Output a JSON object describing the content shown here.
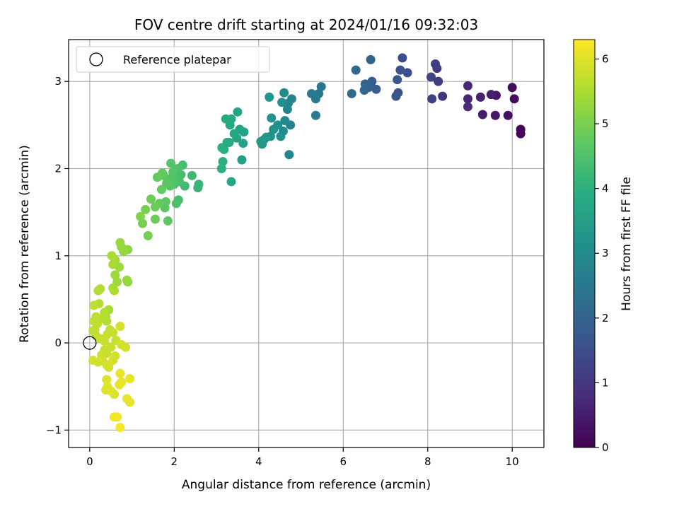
{
  "chart_data": {
    "type": "scatter",
    "title": "FOV centre drift starting at 2024/01/16 09:32:03",
    "xlabel": "Angular distance from reference (arcmin)",
    "ylabel": "Rotation from reference (arcmin)",
    "colorbar_label": "Hours from first FF file",
    "colormap": "viridis",
    "xlim": [
      -0.5,
      10.75
    ],
    "ylim": [
      -1.2,
      3.48
    ],
    "clim": [
      0,
      6.3
    ],
    "xticks": [
      0,
      2,
      4,
      6,
      8,
      10
    ],
    "yticks": [
      -1,
      0,
      1,
      2,
      3
    ],
    "cticks": [
      0,
      1,
      2,
      3,
      4,
      5,
      6
    ],
    "xtick_labels": [
      "0",
      "2",
      "4",
      "6",
      "8",
      "10"
    ],
    "ytick_labels": [
      "−1",
      "0",
      "1",
      "2",
      "3"
    ],
    "ctick_labels": [
      "0",
      "1",
      "2",
      "3",
      "4",
      "5",
      "6"
    ],
    "grid": true,
    "legend": {
      "placement": "top-left",
      "entries": [
        "Reference platepar"
      ]
    },
    "reference_point": {
      "name": "Reference platepar",
      "x": 0,
      "y": 0
    },
    "points": [
      {
        "x": 10.2,
        "y": 2.45,
        "c": 0.1
      },
      {
        "x": 10.2,
        "y": 2.4,
        "c": 0.1
      },
      {
        "x": 10.05,
        "y": 2.8,
        "c": 0.2
      },
      {
        "x": 10.0,
        "y": 2.93,
        "c": 0.2
      },
      {
        "x": 9.9,
        "y": 2.61,
        "c": 0.3
      },
      {
        "x": 9.62,
        "y": 2.84,
        "c": 0.4
      },
      {
        "x": 9.6,
        "y": 2.61,
        "c": 0.4
      },
      {
        "x": 9.5,
        "y": 2.85,
        "c": 0.5
      },
      {
        "x": 9.3,
        "y": 2.62,
        "c": 0.5
      },
      {
        "x": 9.25,
        "y": 2.82,
        "c": 0.6
      },
      {
        "x": 8.95,
        "y": 2.95,
        "c": 0.7
      },
      {
        "x": 8.95,
        "y": 2.8,
        "c": 0.7
      },
      {
        "x": 8.95,
        "y": 2.71,
        "c": 0.8
      },
      {
        "x": 8.35,
        "y": 2.83,
        "c": 1.0
      },
      {
        "x": 8.25,
        "y": 3.0,
        "c": 1.1
      },
      {
        "x": 8.22,
        "y": 3.15,
        "c": 1.1
      },
      {
        "x": 8.18,
        "y": 3.2,
        "c": 1.2
      },
      {
        "x": 8.1,
        "y": 2.8,
        "c": 1.2
      },
      {
        "x": 8.08,
        "y": 3.05,
        "c": 1.3
      },
      {
        "x": 7.52,
        "y": 3.1,
        "c": 1.5
      },
      {
        "x": 7.4,
        "y": 3.27,
        "c": 1.5
      },
      {
        "x": 7.35,
        "y": 3.13,
        "c": 1.6
      },
      {
        "x": 7.3,
        "y": 2.87,
        "c": 1.6
      },
      {
        "x": 7.28,
        "y": 3.02,
        "c": 1.7
      },
      {
        "x": 7.25,
        "y": 2.83,
        "c": 1.7
      },
      {
        "x": 6.78,
        "y": 2.91,
        "c": 1.9
      },
      {
        "x": 6.68,
        "y": 3.0,
        "c": 1.9
      },
      {
        "x": 6.65,
        "y": 3.25,
        "c": 2.0
      },
      {
        "x": 6.6,
        "y": 2.93,
        "c": 2.0
      },
      {
        "x": 6.52,
        "y": 2.97,
        "c": 2.1
      },
      {
        "x": 6.5,
        "y": 2.9,
        "c": 2.1
      },
      {
        "x": 6.3,
        "y": 3.13,
        "c": 2.2
      },
      {
        "x": 6.2,
        "y": 2.86,
        "c": 2.2
      },
      {
        "x": 5.48,
        "y": 2.94,
        "c": 2.5
      },
      {
        "x": 5.42,
        "y": 2.86,
        "c": 2.5
      },
      {
        "x": 5.35,
        "y": 2.8,
        "c": 2.6
      },
      {
        "x": 5.35,
        "y": 2.61,
        "c": 2.6
      },
      {
        "x": 5.25,
        "y": 2.86,
        "c": 2.6
      },
      {
        "x": 4.78,
        "y": 2.8,
        "c": 2.8
      },
      {
        "x": 4.75,
        "y": 2.5,
        "c": 2.8
      },
      {
        "x": 4.72,
        "y": 2.16,
        "c": 2.9
      },
      {
        "x": 4.7,
        "y": 2.75,
        "c": 2.9
      },
      {
        "x": 4.68,
        "y": 2.68,
        "c": 2.9
      },
      {
        "x": 4.62,
        "y": 2.55,
        "c": 3.0
      },
      {
        "x": 4.6,
        "y": 2.87,
        "c": 3.0
      },
      {
        "x": 4.58,
        "y": 2.43,
        "c": 3.0
      },
      {
        "x": 4.55,
        "y": 2.76,
        "c": 3.1
      },
      {
        "x": 4.52,
        "y": 2.37,
        "c": 3.1
      },
      {
        "x": 4.45,
        "y": 2.5,
        "c": 3.1
      },
      {
        "x": 4.35,
        "y": 2.45,
        "c": 3.2
      },
      {
        "x": 4.3,
        "y": 2.58,
        "c": 3.2
      },
      {
        "x": 4.28,
        "y": 2.37,
        "c": 3.2
      },
      {
        "x": 4.25,
        "y": 2.82,
        "c": 3.3
      },
      {
        "x": 4.18,
        "y": 2.36,
        "c": 3.3
      },
      {
        "x": 4.12,
        "y": 2.33,
        "c": 3.3
      },
      {
        "x": 4.08,
        "y": 2.28,
        "c": 3.3
      },
      {
        "x": 4.05,
        "y": 2.31,
        "c": 3.4
      },
      {
        "x": 3.65,
        "y": 2.42,
        "c": 3.6
      },
      {
        "x": 3.63,
        "y": 2.29,
        "c": 3.6
      },
      {
        "x": 3.6,
        "y": 2.1,
        "c": 3.6
      },
      {
        "x": 3.55,
        "y": 2.45,
        "c": 3.7
      },
      {
        "x": 3.5,
        "y": 2.65,
        "c": 3.7
      },
      {
        "x": 3.48,
        "y": 2.35,
        "c": 3.7
      },
      {
        "x": 3.42,
        "y": 2.4,
        "c": 3.8
      },
      {
        "x": 3.35,
        "y": 2.57,
        "c": 3.8
      },
      {
        "x": 3.35,
        "y": 1.85,
        "c": 3.8
      },
      {
        "x": 3.32,
        "y": 2.5,
        "c": 3.8
      },
      {
        "x": 3.3,
        "y": 2.3,
        "c": 3.9
      },
      {
        "x": 3.25,
        "y": 2.3,
        "c": 3.9
      },
      {
        "x": 3.22,
        "y": 2.57,
        "c": 3.9
      },
      {
        "x": 3.18,
        "y": 2.22,
        "c": 3.9
      },
      {
        "x": 3.15,
        "y": 2.08,
        "c": 4.0
      },
      {
        "x": 3.13,
        "y": 2.24,
        "c": 4.0
      },
      {
        "x": 3.12,
        "y": 2.0,
        "c": 4.0
      },
      {
        "x": 2.58,
        "y": 1.82,
        "c": 4.2
      },
      {
        "x": 2.56,
        "y": 1.78,
        "c": 4.2
      },
      {
        "x": 2.42,
        "y": 1.92,
        "c": 4.3
      },
      {
        "x": 2.25,
        "y": 1.8,
        "c": 4.3
      },
      {
        "x": 2.2,
        "y": 2.04,
        "c": 4.4
      },
      {
        "x": 2.16,
        "y": 1.93,
        "c": 4.4
      },
      {
        "x": 2.12,
        "y": 1.85,
        "c": 4.4
      },
      {
        "x": 2.1,
        "y": 1.64,
        "c": 4.4
      },
      {
        "x": 2.08,
        "y": 2.0,
        "c": 4.5
      },
      {
        "x": 2.05,
        "y": 1.6,
        "c": 4.5
      },
      {
        "x": 2.02,
        "y": 1.88,
        "c": 4.5
      },
      {
        "x": 2.0,
        "y": 1.82,
        "c": 4.5
      },
      {
        "x": 1.97,
        "y": 1.96,
        "c": 4.6
      },
      {
        "x": 1.95,
        "y": 1.85,
        "c": 4.6
      },
      {
        "x": 1.92,
        "y": 2.06,
        "c": 4.6
      },
      {
        "x": 1.9,
        "y": 1.8,
        "c": 4.6
      },
      {
        "x": 1.87,
        "y": 1.88,
        "c": 4.6
      },
      {
        "x": 1.85,
        "y": 1.4,
        "c": 4.7
      },
      {
        "x": 1.82,
        "y": 1.83,
        "c": 4.7
      },
      {
        "x": 1.8,
        "y": 1.62,
        "c": 4.7
      },
      {
        "x": 1.78,
        "y": 1.55,
        "c": 4.7
      },
      {
        "x": 1.75,
        "y": 1.92,
        "c": 4.7
      },
      {
        "x": 1.72,
        "y": 1.95,
        "c": 4.8
      },
      {
        "x": 1.7,
        "y": 1.76,
        "c": 4.8
      },
      {
        "x": 1.65,
        "y": 1.6,
        "c": 4.8
      },
      {
        "x": 1.6,
        "y": 1.9,
        "c": 4.8
      },
      {
        "x": 1.55,
        "y": 1.42,
        "c": 4.9
      },
      {
        "x": 1.55,
        "y": 1.56,
        "c": 4.9
      },
      {
        "x": 1.45,
        "y": 1.65,
        "c": 4.9
      },
      {
        "x": 1.38,
        "y": 1.23,
        "c": 5.0
      },
      {
        "x": 1.32,
        "y": 1.53,
        "c": 5.0
      },
      {
        "x": 1.25,
        "y": 1.37,
        "c": 5.0
      },
      {
        "x": 1.2,
        "y": 1.45,
        "c": 5.1
      },
      {
        "x": 0.9,
        "y": 1.07,
        "c": 5.2
      },
      {
        "x": 0.9,
        "y": 0.7,
        "c": 5.2
      },
      {
        "x": 0.88,
        "y": 0.72,
        "c": 5.3
      },
      {
        "x": 0.8,
        "y": 1.05,
        "c": 5.3
      },
      {
        "x": 0.75,
        "y": 1.1,
        "c": 5.3
      },
      {
        "x": 0.72,
        "y": 1.15,
        "c": 5.3
      },
      {
        "x": 0.7,
        "y": 0.87,
        "c": 5.4
      },
      {
        "x": 0.65,
        "y": 0.7,
        "c": 5.4
      },
      {
        "x": 0.6,
        "y": 0.95,
        "c": 5.4
      },
      {
        "x": 0.6,
        "y": 0.78,
        "c": 5.4
      },
      {
        "x": 0.58,
        "y": 0.6,
        "c": 5.5
      },
      {
        "x": 0.55,
        "y": 0.9,
        "c": 5.5
      },
      {
        "x": 0.55,
        "y": 0.63,
        "c": 5.5
      },
      {
        "x": 0.52,
        "y": 1.0,
        "c": 5.5
      },
      {
        "x": 0.45,
        "y": 0.38,
        "c": 5.5
      },
      {
        "x": 0.4,
        "y": 0.25,
        "c": 5.6
      },
      {
        "x": 0.38,
        "y": 0.3,
        "c": 5.6
      },
      {
        "x": 0.35,
        "y": 0.35,
        "c": 5.6
      },
      {
        "x": 0.3,
        "y": 0.28,
        "c": 5.6
      },
      {
        "x": 0.25,
        "y": 0.62,
        "c": 5.6
      },
      {
        "x": 0.22,
        "y": 0.45,
        "c": 5.6
      },
      {
        "x": 0.2,
        "y": 0.6,
        "c": 5.6
      },
      {
        "x": 0.18,
        "y": 0.22,
        "c": 5.7
      },
      {
        "x": 0.15,
        "y": 0.3,
        "c": 5.7
      },
      {
        "x": 0.12,
        "y": 0.15,
        "c": 5.7
      },
      {
        "x": 0.1,
        "y": 0.43,
        "c": 5.7
      },
      {
        "x": 0.1,
        "y": 0.25,
        "c": 5.7
      },
      {
        "x": 0.08,
        "y": 0.14,
        "c": 5.7
      },
      {
        "x": 0.15,
        "y": 0.08,
        "c": 5.7
      },
      {
        "x": 0.25,
        "y": 0.05,
        "c": 5.8
      },
      {
        "x": 0.35,
        "y": 0.02,
        "c": 5.8
      },
      {
        "x": 0.42,
        "y": 0.1,
        "c": 5.8
      },
      {
        "x": 0.48,
        "y": 0.15,
        "c": 5.8
      },
      {
        "x": 0.55,
        "y": 0.12,
        "c": 5.8
      },
      {
        "x": 0.62,
        "y": 0.03,
        "c": 5.8
      },
      {
        "x": 0.5,
        "y": -0.05,
        "c": 5.8
      },
      {
        "x": 0.4,
        "y": -0.12,
        "c": 5.8
      },
      {
        "x": 0.35,
        "y": -0.08,
        "c": 5.8
      },
      {
        "x": 0.28,
        "y": -0.14,
        "c": 5.8
      },
      {
        "x": 0.3,
        "y": -0.2,
        "c": 5.9
      },
      {
        "x": 0.4,
        "y": -0.25,
        "c": 5.9
      },
      {
        "x": 0.45,
        "y": -0.28,
        "c": 5.9
      },
      {
        "x": 0.55,
        "y": -0.2,
        "c": 5.9
      },
      {
        "x": 0.6,
        "y": -0.15,
        "c": 5.9
      },
      {
        "x": 0.08,
        "y": -0.2,
        "c": 5.9
      },
      {
        "x": 0.2,
        "y": -0.22,
        "c": 5.9
      },
      {
        "x": 0.72,
        "y": 0.19,
        "c": 5.9
      },
      {
        "x": 0.75,
        "y": -0.02,
        "c": 5.9
      },
      {
        "x": 0.85,
        "y": -0.05,
        "c": 5.9
      },
      {
        "x": 0.4,
        "y": -0.42,
        "c": 6.0
      },
      {
        "x": 0.42,
        "y": -0.5,
        "c": 6.0
      },
      {
        "x": 0.38,
        "y": -0.54,
        "c": 6.0
      },
      {
        "x": 0.5,
        "y": -0.55,
        "c": 6.0
      },
      {
        "x": 0.58,
        "y": -0.59,
        "c": 6.0
      },
      {
        "x": 0.72,
        "y": -0.35,
        "c": 6.1
      },
      {
        "x": 0.75,
        "y": -0.45,
        "c": 6.1
      },
      {
        "x": 0.7,
        "y": -0.48,
        "c": 6.1
      },
      {
        "x": 0.88,
        "y": -0.64,
        "c": 6.1
      },
      {
        "x": 0.95,
        "y": -0.41,
        "c": 6.1
      },
      {
        "x": 0.95,
        "y": -0.68,
        "c": 6.1
      },
      {
        "x": 0.58,
        "y": -0.85,
        "c": 6.2
      },
      {
        "x": 0.65,
        "y": -0.85,
        "c": 6.2
      },
      {
        "x": 0.72,
        "y": -0.97,
        "c": 6.2
      }
    ]
  }
}
